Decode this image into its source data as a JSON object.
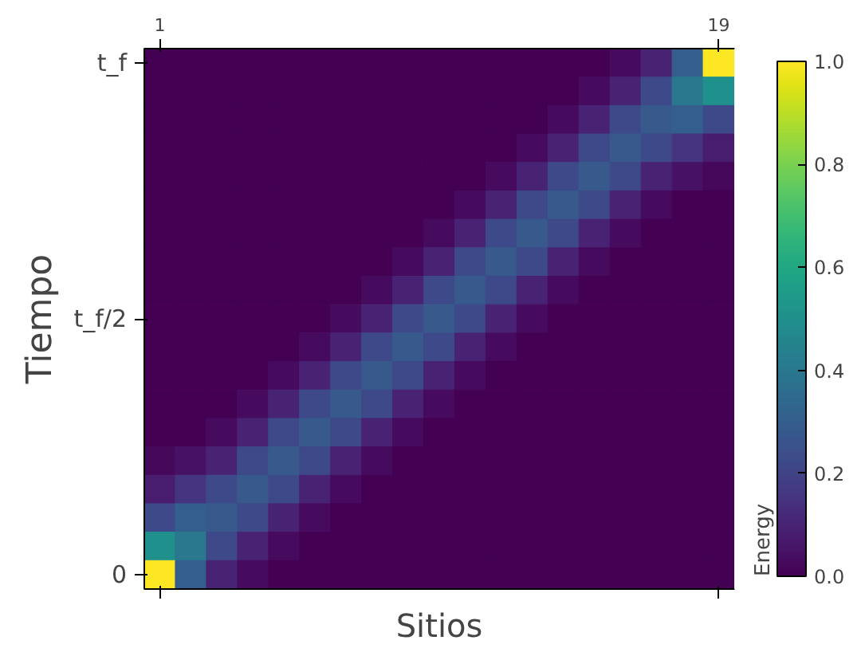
{
  "chart_data": {
    "type": "heatmap",
    "xlabel": "Sitios",
    "ylabel": "Tiempo",
    "clabel": "Energy",
    "categories": [
      "1",
      null,
      null,
      null,
      null,
      null,
      null,
      null,
      null,
      null,
      null,
      null,
      null,
      null,
      null,
      null,
      null,
      null,
      "19"
    ],
    "y_categories": [
      "t_f",
      null,
      null,
      null,
      null,
      null,
      null,
      null,
      null,
      "t_f/2",
      null,
      null,
      null,
      null,
      null,
      null,
      null,
      null,
      "0"
    ],
    "clim": [
      0,
      1
    ],
    "cticks": [
      {
        "value": 0,
        "label": "0.0"
      },
      {
        "value": 0.2,
        "label": "0.2"
      },
      {
        "value": 0.4,
        "label": "0.4"
      },
      {
        "value": 0.6,
        "label": "0.6"
      },
      {
        "value": 0.8,
        "label": "0.8"
      },
      {
        "value": 1,
        "label": "1.0"
      }
    ],
    "cells": [
      [
        0,
        0,
        0,
        0,
        0,
        0,
        0,
        0,
        0,
        0,
        0,
        0,
        0,
        0,
        0,
        0.03,
        0.1,
        0.3,
        1.0
      ],
      [
        0,
        0,
        0,
        0,
        0,
        0,
        0,
        0,
        0,
        0,
        0,
        0,
        0,
        0,
        0.03,
        0.1,
        0.22,
        0.4,
        0.5
      ],
      [
        0,
        0,
        0,
        0,
        0,
        0,
        0,
        0,
        0,
        0,
        0,
        0,
        0,
        0.03,
        0.1,
        0.22,
        0.28,
        0.3,
        0.22
      ],
      [
        0,
        0,
        0,
        0,
        0,
        0,
        0,
        0,
        0,
        0,
        0,
        0,
        0.03,
        0.1,
        0.22,
        0.28,
        0.22,
        0.15,
        0.08
      ],
      [
        0,
        0,
        0,
        0,
        0,
        0,
        0,
        0,
        0,
        0,
        0,
        0.03,
        0.1,
        0.22,
        0.28,
        0.22,
        0.1,
        0.05,
        0.02
      ],
      [
        0,
        0,
        0,
        0,
        0,
        0,
        0,
        0,
        0,
        0,
        0.03,
        0.1,
        0.22,
        0.28,
        0.22,
        0.1,
        0.03,
        0,
        0
      ],
      [
        0,
        0,
        0,
        0,
        0,
        0,
        0,
        0,
        0,
        0.03,
        0.1,
        0.22,
        0.28,
        0.22,
        0.1,
        0.03,
        0,
        0,
        0
      ],
      [
        0,
        0,
        0,
        0,
        0,
        0,
        0,
        0,
        0.03,
        0.1,
        0.22,
        0.28,
        0.22,
        0.1,
        0.03,
        0,
        0,
        0,
        0
      ],
      [
        0,
        0,
        0,
        0,
        0,
        0,
        0,
        0.03,
        0.1,
        0.22,
        0.28,
        0.22,
        0.1,
        0.03,
        0,
        0,
        0,
        0,
        0
      ],
      [
        0,
        0,
        0,
        0,
        0,
        0,
        0.03,
        0.1,
        0.22,
        0.28,
        0.22,
        0.1,
        0.03,
        0,
        0,
        0,
        0,
        0,
        0
      ],
      [
        0,
        0,
        0,
        0,
        0,
        0.03,
        0.1,
        0.22,
        0.28,
        0.22,
        0.1,
        0.03,
        0,
        0,
        0,
        0,
        0,
        0,
        0
      ],
      [
        0,
        0,
        0,
        0,
        0.03,
        0.1,
        0.22,
        0.28,
        0.22,
        0.1,
        0.03,
        0,
        0,
        0,
        0,
        0,
        0,
        0,
        0
      ],
      [
        0,
        0,
        0,
        0.03,
        0.1,
        0.22,
        0.28,
        0.22,
        0.1,
        0.03,
        0,
        0,
        0,
        0,
        0,
        0,
        0,
        0,
        0
      ],
      [
        0,
        0,
        0.03,
        0.1,
        0.22,
        0.28,
        0.22,
        0.1,
        0.03,
        0,
        0,
        0,
        0,
        0,
        0,
        0,
        0,
        0,
        0
      ],
      [
        0.02,
        0.05,
        0.1,
        0.22,
        0.28,
        0.22,
        0.1,
        0.03,
        0,
        0,
        0,
        0,
        0,
        0,
        0,
        0,
        0,
        0,
        0
      ],
      [
        0.08,
        0.15,
        0.22,
        0.28,
        0.22,
        0.1,
        0.03,
        0,
        0,
        0,
        0,
        0,
        0,
        0,
        0,
        0,
        0,
        0,
        0
      ],
      [
        0.22,
        0.3,
        0.28,
        0.22,
        0.1,
        0.03,
        0,
        0,
        0,
        0,
        0,
        0,
        0,
        0,
        0,
        0,
        0,
        0,
        0
      ],
      [
        0.5,
        0.4,
        0.22,
        0.1,
        0.03,
        0,
        0,
        0,
        0,
        0,
        0,
        0,
        0,
        0,
        0,
        0,
        0,
        0,
        0
      ],
      [
        1.0,
        0.3,
        0.1,
        0.03,
        0,
        0,
        0,
        0,
        0,
        0,
        0,
        0,
        0,
        0,
        0,
        0,
        0,
        0,
        0
      ]
    ]
  }
}
